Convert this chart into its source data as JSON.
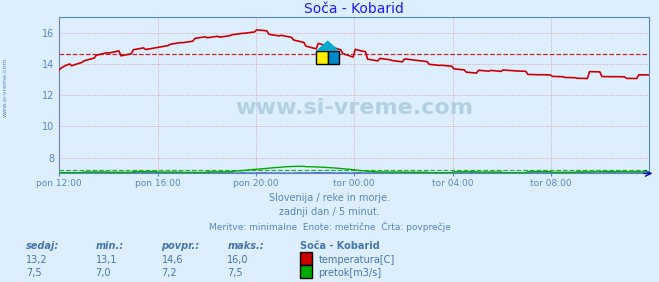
{
  "title": "Soča - Kobarid",
  "title_color": "#1a1aff",
  "background_color": "#ddeeff",
  "plot_bg_color": "#ddeeff",
  "grid_color": "#dd6666",
  "watermark_text": "www.si-vreme.com",
  "watermark_color": "#aaccdd",
  "side_label": "www.si-vreme.com",
  "side_label_color": "#5588bb",
  "xlim": [
    0,
    288
  ],
  "ylim": [
    7,
    17
  ],
  "yticks": [
    8,
    10,
    12,
    14,
    16
  ],
  "xtick_labels": [
    "pon 12:00",
    "pon 16:00",
    "pon 20:00",
    "tor 00:00",
    "tor 04:00",
    "tor 08:00"
  ],
  "xtick_positions": [
    0,
    48,
    96,
    144,
    192,
    240
  ],
  "temp_color": "#cc0000",
  "flow_color": "#00aa00",
  "height_color": "#0000cc",
  "temp_avg": 14.6,
  "flow_avg": 7.2,
  "subtitle1": "Slovenija / reke in morje.",
  "subtitle2": "zadnji dan / 5 minut.",
  "subtitle3": "Meritve: minimalne  Enote: metrične  Črta: povprečje",
  "subtitle_color": "#5588bb",
  "legend_title": "Soča - Kobarid",
  "legend_color": "#4477aa",
  "table_headers": [
    "sedaj:",
    "min.:",
    "povpr.:",
    "maks.:"
  ],
  "temp_values": [
    "13,2",
    "13,1",
    "14,6",
    "16,0"
  ],
  "flow_values": [
    "7,5",
    "7,0",
    "7,2",
    "7,5"
  ],
  "temp_label": "temperatura[C]",
  "flow_label": "pretok[m3/s]",
  "figwidth": 6.59,
  "figheight": 2.82,
  "dpi": 100
}
